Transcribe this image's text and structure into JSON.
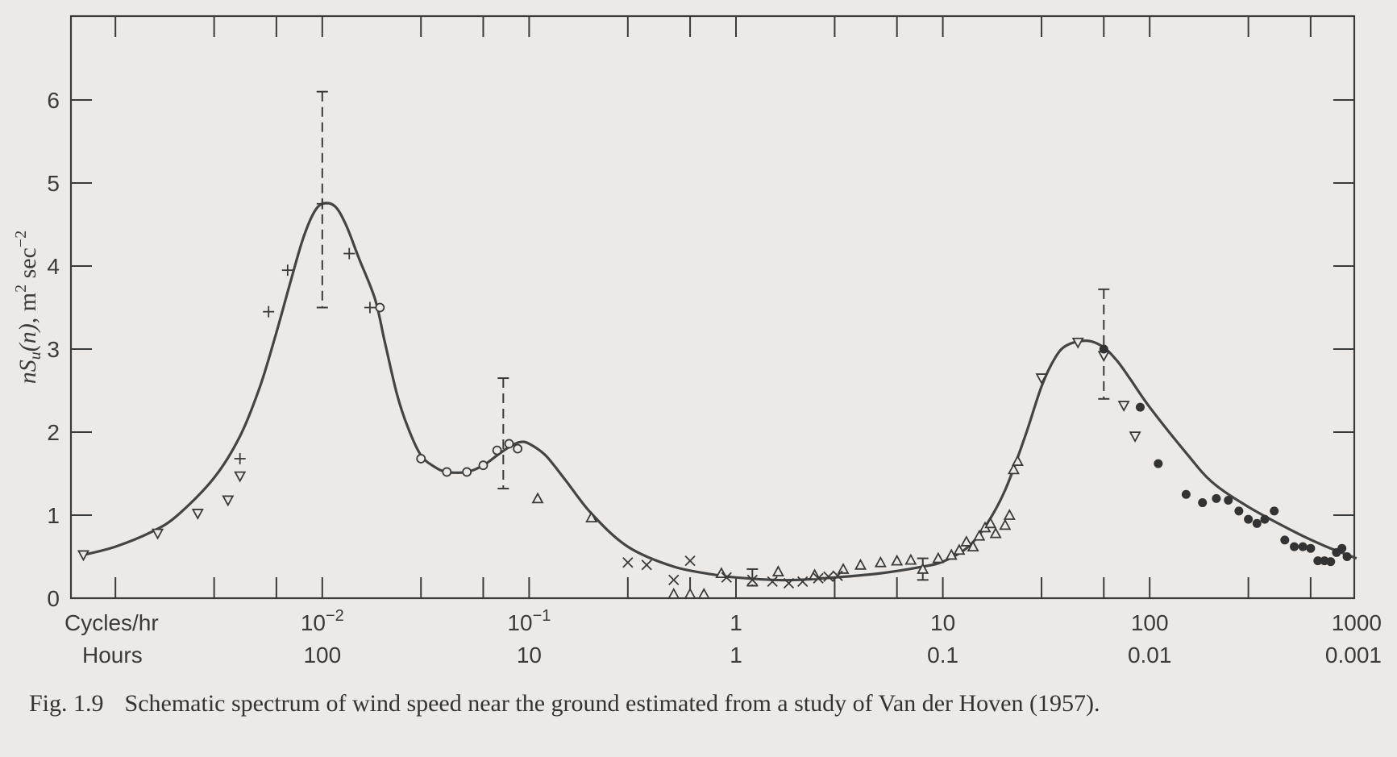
{
  "chart_data": {
    "type": "line",
    "title": "",
    "ylabel": "nS_u(n), m^2 sec^-2",
    "xscale": "log",
    "xlim": [
      0.0006,
      1000
    ],
    "ylim": [
      0,
      7
    ],
    "grid": false,
    "y_ticks": [
      0,
      1,
      2,
      3,
      4,
      5,
      6
    ],
    "x_tick_labels": [
      {
        "row1": "Cycles/hr",
        "row2": "Hours"
      },
      {
        "x": 0.01,
        "row1_base": "10",
        "row1_exp": "−2",
        "row2": "100"
      },
      {
        "x": 0.1,
        "row1_base": "10",
        "row1_exp": "−1",
        "row2": "10"
      },
      {
        "x": 1,
        "row1": "1",
        "row2": "1"
      },
      {
        "x": 10,
        "row1": "10",
        "row2": "0.1"
      },
      {
        "x": 100,
        "row1": "100",
        "row2": "0.01"
      },
      {
        "x": 1000,
        "row1": "1000",
        "row2": "0.001"
      }
    ],
    "curve": {
      "x": [
        0.0007,
        0.001,
        0.0015,
        0.002,
        0.003,
        0.004,
        0.005,
        0.006,
        0.007,
        0.008,
        0.009,
        0.01,
        0.0115,
        0.013,
        0.015,
        0.018,
        0.02,
        0.023,
        0.026,
        0.03,
        0.035,
        0.04,
        0.05,
        0.06,
        0.07,
        0.08,
        0.09,
        0.1,
        0.12,
        0.15,
        0.2,
        0.3,
        0.5,
        0.8,
        1,
        1.5,
        2,
        3,
        5,
        8,
        10,
        13,
        16,
        20,
        25,
        30,
        35,
        40,
        50,
        60,
        70,
        80,
        100,
        150,
        200,
        300,
        500,
        700,
        1000
      ],
      "y": [
        0.52,
        0.62,
        0.8,
        1.0,
        1.45,
        1.95,
        2.55,
        3.2,
        3.8,
        4.3,
        4.62,
        4.75,
        4.72,
        4.5,
        4.1,
        3.6,
        3.1,
        2.45,
        2.05,
        1.72,
        1.58,
        1.52,
        1.52,
        1.6,
        1.72,
        1.82,
        1.88,
        1.86,
        1.72,
        1.42,
        1.02,
        0.62,
        0.38,
        0.28,
        0.25,
        0.22,
        0.22,
        0.25,
        0.3,
        0.38,
        0.44,
        0.6,
        0.86,
        1.3,
        1.95,
        2.55,
        2.9,
        3.05,
        3.1,
        3.02,
        2.85,
        2.65,
        2.3,
        1.75,
        1.4,
        1.1,
        0.8,
        0.63,
        0.48
      ]
    },
    "error_bars": [
      {
        "x": 0.01,
        "low": 3.5,
        "high": 6.1
      },
      {
        "x": 0.075,
        "low": 1.32,
        "high": 2.65
      },
      {
        "x": 1.2,
        "low": 0.15,
        "high": 0.35
      },
      {
        "x": 8,
        "low": 0.22,
        "high": 0.48
      },
      {
        "x": 60,
        "low": 2.4,
        "high": 3.72
      }
    ],
    "series": [
      {
        "marker": "triangle-down",
        "x": [
          0.0007,
          0.0016,
          0.0025,
          0.0035,
          0.004,
          30,
          45,
          60,
          75,
          85
        ],
        "y": [
          0.52,
          0.78,
          1.02,
          1.18,
          1.47,
          2.65,
          3.08,
          2.92,
          2.32,
          1.95
        ]
      },
      {
        "marker": "plus",
        "x": [
          0.004,
          0.0055,
          0.0068,
          0.01,
          0.0135,
          0.017
        ],
        "y": [
          1.68,
          3.45,
          3.95,
          4.75,
          4.15,
          3.5
        ]
      },
      {
        "marker": "circle-open",
        "x": [
          0.019,
          0.03,
          0.04,
          0.05,
          0.06,
          0.07,
          0.08,
          0.088
        ],
        "y": [
          3.5,
          1.68,
          1.52,
          1.52,
          1.6,
          1.78,
          1.86,
          1.8
        ]
      },
      {
        "marker": "triangle-up",
        "x": [
          0.11,
          0.2,
          0.5,
          0.6,
          0.7,
          0.85,
          1.6,
          2.4,
          3.3,
          4,
          5,
          6,
          7,
          8,
          9.5,
          11,
          12,
          13,
          14,
          15,
          16,
          17,
          18,
          20,
          21,
          22,
          23
        ],
        "y": [
          1.2,
          0.97,
          0.05,
          0.05,
          0.05,
          0.3,
          0.32,
          0.28,
          0.35,
          0.4,
          0.43,
          0.45,
          0.46,
          0.35,
          0.48,
          0.52,
          0.58,
          0.68,
          0.62,
          0.75,
          0.85,
          0.9,
          0.78,
          0.88,
          1.0,
          1.55,
          1.65
        ]
      },
      {
        "marker": "cross",
        "x": [
          0.3,
          0.37,
          0.5,
          0.6,
          0.9,
          1.2,
          1.5,
          1.8,
          2.1,
          2.5,
          2.8,
          3.1
        ],
        "y": [
          0.43,
          0.4,
          0.22,
          0.45,
          0.25,
          0.22,
          0.2,
          0.18,
          0.2,
          0.24,
          0.26,
          0.27
        ]
      },
      {
        "marker": "circle-filled",
        "x": [
          60,
          90,
          110,
          150,
          180,
          210,
          240,
          270,
          300,
          330,
          360,
          400,
          450,
          500,
          550,
          600,
          650,
          700,
          750,
          800,
          850,
          900
        ],
        "y": [
          3.0,
          2.3,
          1.62,
          1.25,
          1.15,
          1.2,
          1.18,
          1.05,
          0.95,
          0.9,
          0.95,
          1.05,
          0.7,
          0.62,
          0.62,
          0.6,
          0.45,
          0.45,
          0.44,
          0.55,
          0.6,
          0.5
        ]
      }
    ]
  },
  "caption": {
    "figure_label": "Fig. 1.9",
    "text": "Schematic spectrum of wind speed near the ground estimated from a study of Van der Hoven (1957)."
  }
}
